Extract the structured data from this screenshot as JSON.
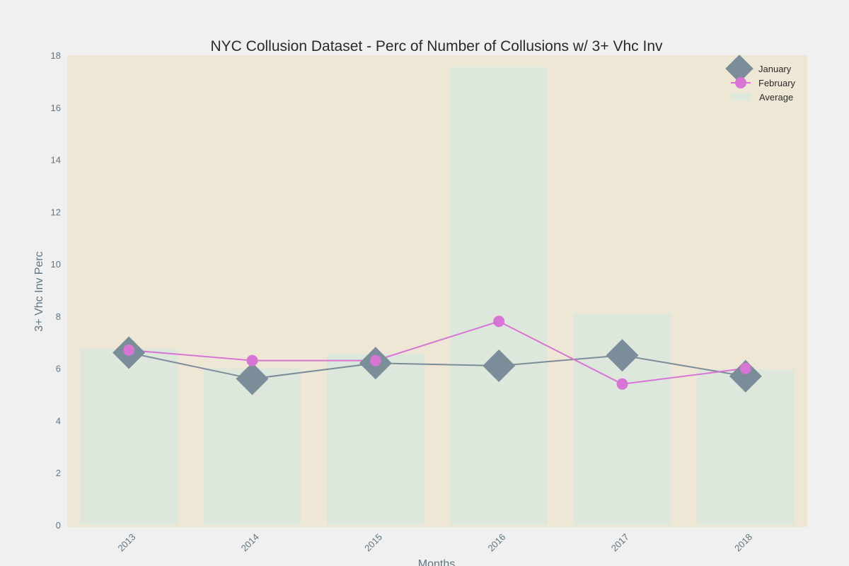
{
  "chart_data": {
    "type": "line",
    "title": "NYC Collusion Dataset - Perc of Number of Collusions w/ 3+ Vhc Inv",
    "xlabel": "Months",
    "ylabel": "3+ Vhc Inv Perc",
    "ylim": [
      0,
      18
    ],
    "yticks": [
      "0",
      "2",
      "4",
      "6",
      "8",
      "10",
      "12",
      "14",
      "16",
      "18"
    ],
    "categories": [
      "2013",
      "2014",
      "2015",
      "2016",
      "2017",
      "2018"
    ],
    "series": [
      {
        "name": "January",
        "kind": "line",
        "marker": "diamond",
        "color": "#7b8d99",
        "values": [
          6.6,
          5.6,
          6.2,
          6.1,
          6.5,
          5.7
        ]
      },
      {
        "name": "February",
        "kind": "line",
        "marker": "circle",
        "color": "#d775d4",
        "values": [
          6.7,
          6.3,
          6.3,
          7.8,
          5.4,
          6.0
        ]
      },
      {
        "name": "Average",
        "kind": "bar",
        "color": "#dde7dc",
        "values": [
          6.75,
          6.0,
          6.55,
          17.55,
          8.1,
          5.95
        ]
      }
    ],
    "legend_position": "top-right",
    "grid": false,
    "plot_background": "#efe7d6",
    "page_background": "#f0f0f0"
  }
}
